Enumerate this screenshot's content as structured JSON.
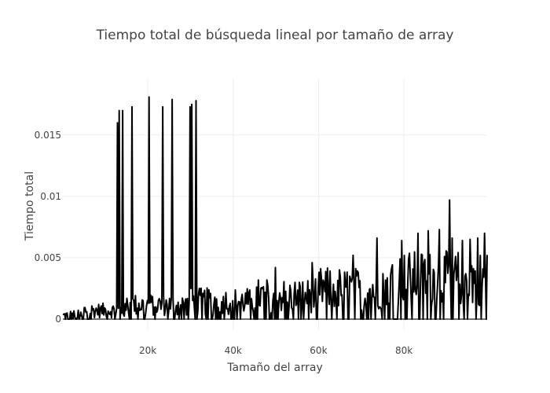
{
  "chart_data": {
    "type": "line",
    "title": "Tiempo total de búsqueda lineal por tamaño de array",
    "xlabel": "Tamaño del array",
    "ylabel": "Tiempo total",
    "xlim": [
      100,
      99500
    ],
    "ylim": [
      -0.0009,
      0.0196
    ],
    "x_ticks": [
      {
        "value": 20000,
        "label": "20k"
      },
      {
        "value": 40000,
        "label": "40k"
      },
      {
        "value": 60000,
        "label": "60k"
      },
      {
        "value": 80000,
        "label": "80k"
      }
    ],
    "y_ticks": [
      {
        "value": 0,
        "label": "0"
      },
      {
        "value": 0.005,
        "label": "0.005"
      },
      {
        "value": 0.01,
        "label": "0.01"
      },
      {
        "value": 0.015,
        "label": "0.015"
      }
    ],
    "grid": true,
    "x_step": 200,
    "series": [
      {
        "name": "Tiempo total",
        "color": "#000000",
        "approximate": true,
        "noise_segments": [
          {
            "from": 100,
            "to": 5000,
            "base": 0.0,
            "amp": 0.001
          },
          {
            "from": 5000,
            "to": 15000,
            "base": 0.0004,
            "amp": 0.0012
          },
          {
            "from": 15000,
            "to": 30000,
            "base": 0.0007,
            "amp": 0.0018
          },
          {
            "from": 30000,
            "to": 45000,
            "base": 0.0009,
            "amp": 0.0022
          },
          {
            "from": 45000,
            "to": 60000,
            "base": 0.0012,
            "amp": 0.0028
          },
          {
            "from": 60000,
            "to": 75000,
            "base": 0.0016,
            "amp": 0.0035
          },
          {
            "from": 75000,
            "to": 99500,
            "base": 0.0022,
            "amp": 0.0045
          }
        ],
        "spikes": [
          {
            "x": 13000,
            "y": 0.016
          },
          {
            "x": 13400,
            "y": 0.017
          },
          {
            "x": 14200,
            "y": 0.017
          },
          {
            "x": 16400,
            "y": 0.0173
          },
          {
            "x": 20400,
            "y": 0.0181
          },
          {
            "x": 23600,
            "y": 0.0173
          },
          {
            "x": 25800,
            "y": 0.0179
          },
          {
            "x": 30000,
            "y": 0.0173
          },
          {
            "x": 30400,
            "y": 0.0175
          },
          {
            "x": 31400,
            "y": 0.0178
          },
          {
            "x": 50000,
            "y": 0.0042
          },
          {
            "x": 58600,
            "y": 0.0046
          },
          {
            "x": 68200,
            "y": 0.0052
          },
          {
            "x": 73800,
            "y": 0.0066
          },
          {
            "x": 79600,
            "y": 0.0064
          },
          {
            "x": 83400,
            "y": 0.007
          },
          {
            "x": 85800,
            "y": 0.0072
          },
          {
            "x": 88400,
            "y": 0.0073
          },
          {
            "x": 90800,
            "y": 0.0097
          },
          {
            "x": 91400,
            "y": 0.0066
          },
          {
            "x": 93800,
            "y": 0.0064
          },
          {
            "x": 95600,
            "y": 0.0065
          },
          {
            "x": 97400,
            "y": 0.0066
          },
          {
            "x": 99000,
            "y": 0.007
          }
        ]
      }
    ]
  }
}
